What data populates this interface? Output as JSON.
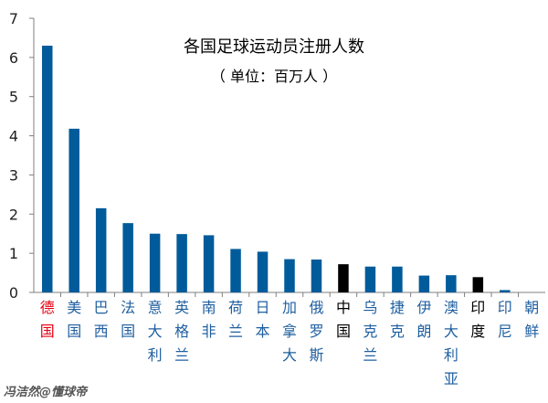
{
  "chart_data": {
    "type": "bar",
    "title": "各国足球运动员注册人数",
    "subtitle": "（ 单位：百万人 ）",
    "ylim": [
      0,
      7
    ],
    "yticks": [
      0,
      1,
      2,
      3,
      4,
      5,
      6,
      7
    ],
    "grid": false,
    "categories": [
      "德国",
      "美国",
      "巴西",
      "法国",
      "意大利",
      "英格兰",
      "南非",
      "荷兰",
      "日本",
      "加拿大",
      "俄罗斯",
      "中国",
      "乌克兰",
      "捷克",
      "伊朗",
      "澳大利亚",
      "印度",
      "印尼",
      "朝鲜"
    ],
    "values": [
      6.3,
      4.18,
      2.15,
      1.77,
      1.5,
      1.49,
      1.46,
      1.11,
      1.04,
      0.85,
      0.84,
      0.72,
      0.66,
      0.66,
      0.43,
      0.44,
      0.39,
      0.06,
      0.0
    ],
    "bar_colors": [
      "#005b9a",
      "#005b9a",
      "#005b9a",
      "#005b9a",
      "#005b9a",
      "#005b9a",
      "#005b9a",
      "#005b9a",
      "#005b9a",
      "#005b9a",
      "#005b9a",
      "#000000",
      "#005b9a",
      "#005b9a",
      "#005b9a",
      "#005b9a",
      "#000000",
      "#005b9a",
      "#005b9a"
    ],
    "label_colors": [
      "#e60012",
      "#1f5fa0",
      "#1f5fa0",
      "#1f5fa0",
      "#1f5fa0",
      "#1f5fa0",
      "#1f5fa0",
      "#1f5fa0",
      "#1f5fa0",
      "#1f5fa0",
      "#1f5fa0",
      "#000000",
      "#1f5fa0",
      "#1f5fa0",
      "#1f5fa0",
      "#1f5fa0",
      "#000000",
      "#1f5fa0",
      "#1f5fa0"
    ]
  },
  "watermark": "冯洁然@懂球帝",
  "colors": {
    "axis": "#7f7f7f",
    "tick_text": "#222222",
    "watermark": "#555555"
  }
}
